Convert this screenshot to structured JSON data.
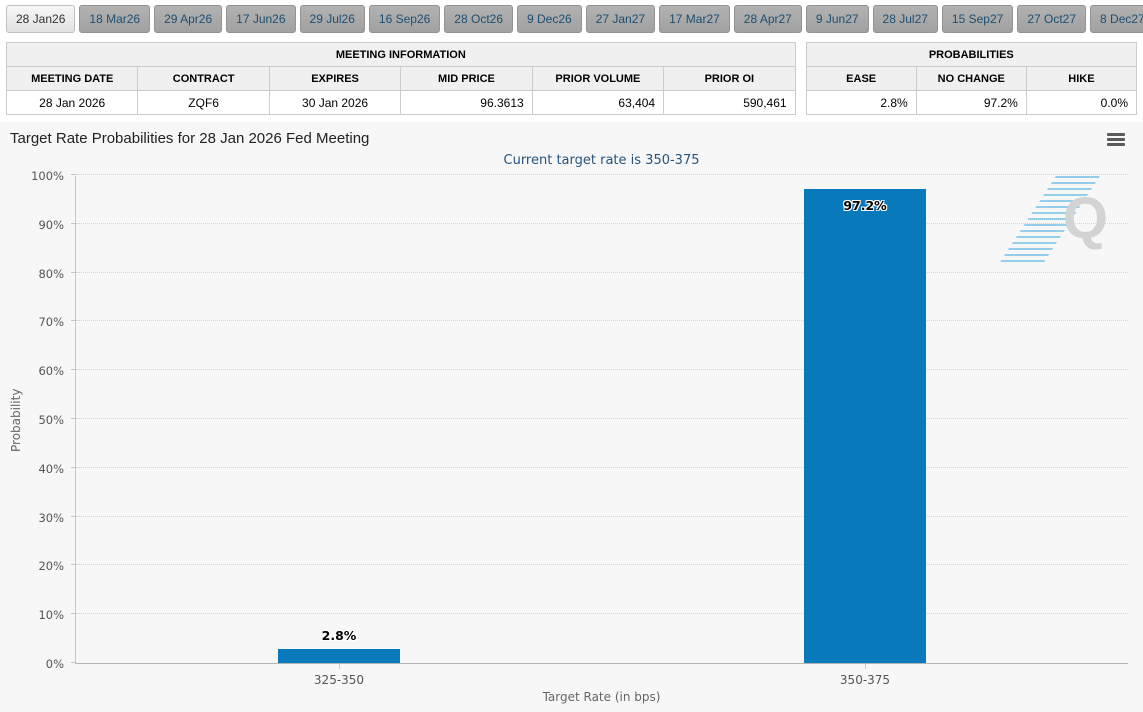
{
  "tabs": {
    "selected_index": 0,
    "items": [
      "28 Jan26",
      "18 Mar26",
      "29 Apr26",
      "17 Jun26",
      "29 Jul26",
      "16 Sep26",
      "28 Oct26",
      "9 Dec26",
      "27 Jan27",
      "17 Mar27",
      "28 Apr27",
      "9 Jun27",
      "28 Jul27",
      "15 Sep27",
      "27 Oct27",
      "8 Dec27"
    ]
  },
  "meeting_info_table": {
    "title": "MEETING INFORMATION",
    "columns": [
      "MEETING DATE",
      "CONTRACT",
      "EXPIRES",
      "MID PRICE",
      "PRIOR VOLUME",
      "PRIOR OI"
    ],
    "rows": [
      [
        "28 Jan 2026",
        "ZQF6",
        "30 Jan 2026",
        "96.3613",
        "63,404",
        "590,461"
      ]
    ]
  },
  "probabilities_table": {
    "title": "PROBABILITIES",
    "columns": [
      "EASE",
      "NO CHANGE",
      "HIKE"
    ],
    "rows": [
      [
        "2.8%",
        "97.2%",
        "0.0%"
      ]
    ]
  },
  "chart": {
    "title": "Target Rate Probabilities for 28 Jan 2026 Fed Meeting",
    "subtitle": "Current target rate is 350-375",
    "menu_icon": "hamburger"
  },
  "chart_data": {
    "type": "bar",
    "title": "Target Rate Probabilities for 28 Jan 2026 Fed Meeting",
    "subtitle": "Current target rate is 350-375",
    "categories": [
      "325-350",
      "350-375"
    ],
    "values": [
      2.8,
      97.2
    ],
    "value_labels": [
      "2.8%",
      "97.2%"
    ],
    "xlabel": "Target Rate (in bps)",
    "ylabel": "Probability",
    "ylim": [
      0,
      100
    ],
    "ytick_step": 10,
    "ytick_labels": [
      "0%",
      "10%",
      "20%",
      "30%",
      "40%",
      "50%",
      "60%",
      "70%",
      "80%",
      "90%",
      "100%"
    ],
    "grid": "horizontal-dotted",
    "legend": "none",
    "bar_color": "#087abc"
  },
  "watermark": {
    "letter": "Q"
  },
  "colors": {
    "bar_blue": "#087abc",
    "subtitle_navy": "#26547c",
    "tab_text_navy": "#1d4f72",
    "panel_bg": "#f7f7f7",
    "table_header_bg": "#f0f0f0"
  }
}
